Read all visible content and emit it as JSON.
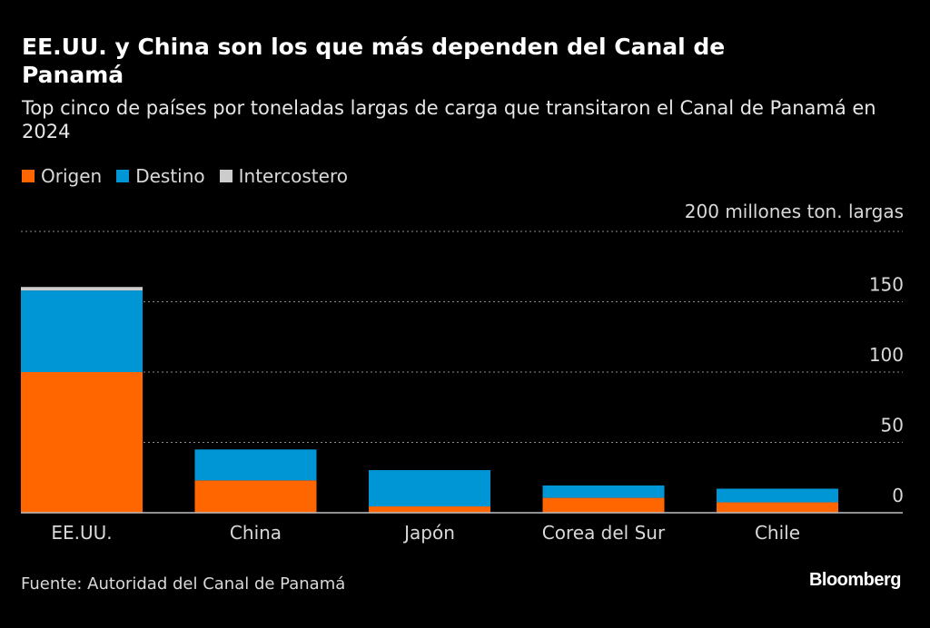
{
  "header": {
    "title": "EE.UU. y China son los que más dependen del Canal de Panamá",
    "subtitle": "Top cinco de países por toneladas largas de carga que transitaron el Canal de Panamá en 2024"
  },
  "legend": [
    {
      "label": "Origen",
      "color": "#FF6600"
    },
    {
      "label": "Destino",
      "color": "#0096D6"
    },
    {
      "label": "Intercostero",
      "color": "#CCCCCC"
    }
  ],
  "footer": {
    "source": "Fuente: Autoridad del Canal de Panamá",
    "brand": "Bloomberg"
  },
  "chart_data": {
    "type": "bar",
    "stacked": true,
    "title": "EE.UU. y China son los que más dependen del Canal de Panamá",
    "subtitle": "Top cinco de países por toneladas largas de carga que transitaron el Canal de Panamá en 2024",
    "xlabel": "",
    "ylabel": "millones ton. largas",
    "unit_label": "200 millones ton. largas",
    "categories": [
      "EE.UU.",
      "China",
      "Japón",
      "Corea del Sur",
      "Chile"
    ],
    "series": [
      {
        "name": "Origen",
        "color": "#FF6600",
        "values": [
          100,
          23,
          4.5,
          10.6,
          7.4
        ]
      },
      {
        "name": "Destino",
        "color": "#0096D6",
        "values": [
          58,
          22,
          25.8,
          8.8,
          9.7
        ]
      },
      {
        "name": "Intercostero",
        "color": "#CCCCCC",
        "values": [
          2.5,
          0,
          0,
          0,
          0
        ]
      }
    ],
    "ylim": [
      0,
      200
    ],
    "yticks": [
      0,
      50,
      100,
      150,
      200
    ],
    "ytick_labels": [
      "0",
      "50",
      "100",
      "150",
      "200 millones ton. largas"
    ],
    "grid": true,
    "axis_side": "right",
    "legend_position": "top-left",
    "source": "Fuente: Autoridad del Canal de Panamá"
  }
}
